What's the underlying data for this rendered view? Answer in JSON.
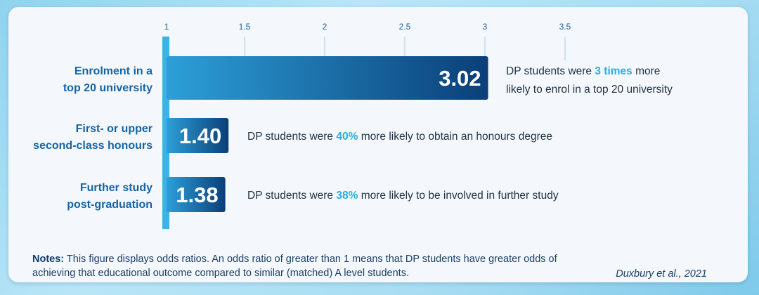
{
  "chart_data": {
    "type": "bar",
    "orientation": "horizontal",
    "categories": [
      [
        "Enrolment in a",
        "top 20 university"
      ],
      [
        "First- or upper",
        "second-class honours"
      ],
      [
        "Further study",
        "post-graduation"
      ]
    ],
    "values": [
      3.02,
      1.4,
      1.38
    ],
    "value_labels": [
      "3.02",
      "1.40",
      "1.38"
    ],
    "x_ticks": [
      1,
      1.5,
      2,
      2.5,
      3,
      3.5
    ],
    "x_tick_labels": [
      "1",
      "1.5",
      "2",
      "2.5",
      "3",
      "3.5"
    ],
    "xlim": [
      1,
      3.5
    ],
    "baseline": 1,
    "annotations": [
      {
        "lines": [
          [
            {
              "text": "DP students were ",
              "highlight": false
            },
            {
              "text": "3 times",
              "highlight": true
            },
            {
              "text": " more",
              "highlight": false
            }
          ],
          [
            {
              "text": "likely to  enrol in a top 20 university",
              "highlight": false
            }
          ]
        ]
      },
      {
        "lines": [
          [
            {
              "text": "DP students were ",
              "highlight": false
            },
            {
              "text": "40%",
              "highlight": true
            },
            {
              "text": " more likely to obtain an honours degree",
              "highlight": false
            }
          ]
        ]
      },
      {
        "lines": [
          [
            {
              "text": "DP students were ",
              "highlight": false
            },
            {
              "text": "38%",
              "highlight": true
            },
            {
              "text": " more likely to be involved in further study",
              "highlight": false
            }
          ]
        ]
      }
    ]
  },
  "notes": {
    "label": "Notes:",
    "text": " This figure displays odds ratios. An odds ratio of greater than 1 means that DP students have greater odds of achieving that educational outcome compared to similar (matched) A level students."
  },
  "source": "Duxbury et al., 2021",
  "colors": {
    "bar_dark": "#0b3f78",
    "bar_light": "#2d9fd8",
    "baseline": "#39b4e3",
    "gridline": "#b8d8ec",
    "highlight": "#2aaee0",
    "category_text": "#1464a8"
  }
}
